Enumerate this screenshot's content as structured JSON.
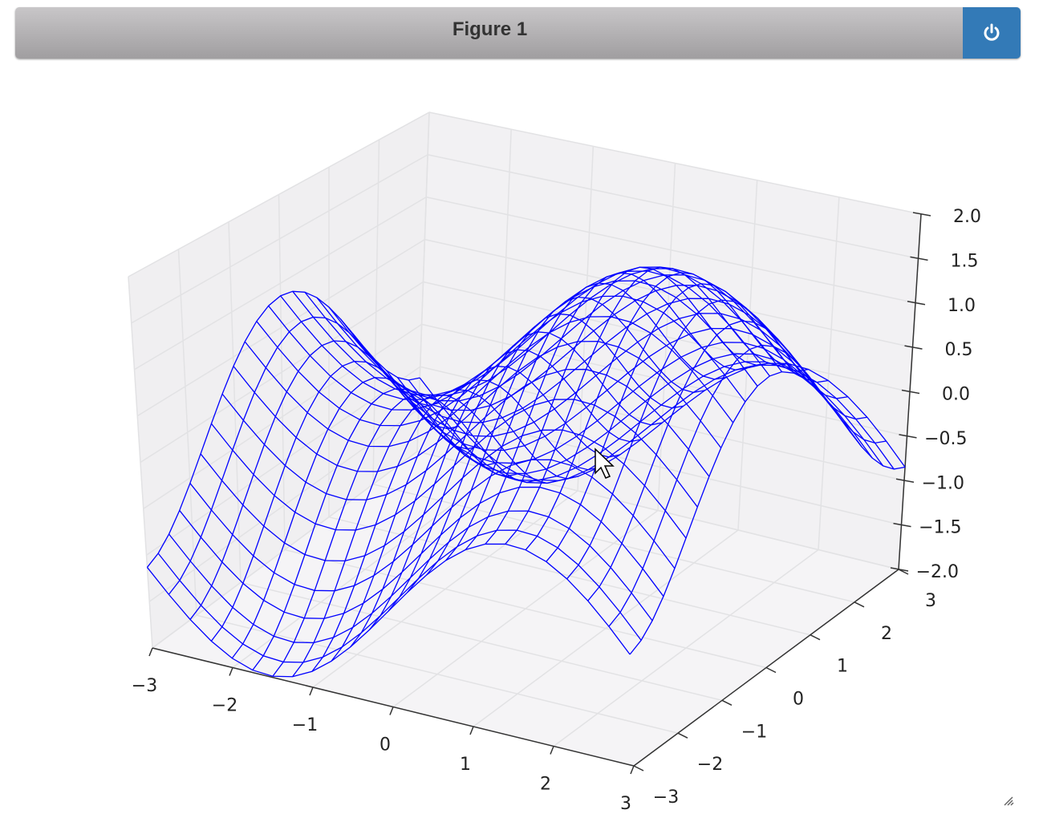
{
  "window": {
    "title": "Figure 1",
    "power_button_icon": "power-icon"
  },
  "chart_data": {
    "type": "wireframe3d",
    "surface": "z = sin(x) + cos(y)",
    "x_range": [
      -3,
      3
    ],
    "y_range": [
      -3,
      3
    ],
    "zlim": [
      -2,
      2
    ],
    "grid_lines": 25,
    "line_color": "#0000ff",
    "grid": true,
    "view": {
      "elev": 30,
      "azim": -60
    },
    "x_ticks": [
      "−3",
      "−2",
      "−1",
      "0",
      "1",
      "2",
      "3"
    ],
    "y_ticks": [
      "−3",
      "−2",
      "−1",
      "0",
      "1",
      "2",
      "3"
    ],
    "z_ticks": [
      "−2.0",
      "−1.5",
      "−1.0",
      "−0.5",
      "0.0",
      "0.5",
      "1.0",
      "1.5",
      "2.0"
    ]
  }
}
